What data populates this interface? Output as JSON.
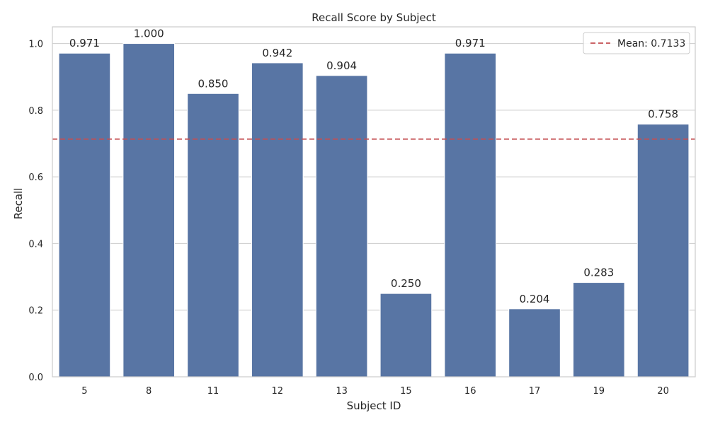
{
  "chart_data": {
    "type": "bar",
    "title": "Recall Score by Subject",
    "xlabel": "Subject ID",
    "ylabel": "Recall",
    "categories": [
      "5",
      "8",
      "11",
      "12",
      "13",
      "15",
      "16",
      "17",
      "19",
      "20"
    ],
    "values": [
      0.971,
      1.0,
      0.85,
      0.942,
      0.904,
      0.25,
      0.971,
      0.204,
      0.283,
      0.758
    ],
    "value_labels": [
      "0.971",
      "1.000",
      "0.850",
      "0.942",
      "0.904",
      "0.250",
      "0.971",
      "0.204",
      "0.283",
      "0.758"
    ],
    "yticks": [
      0.0,
      0.2,
      0.4,
      0.6,
      0.8,
      1.0
    ],
    "ytick_labels": [
      "0.0",
      "0.2",
      "0.4",
      "0.6",
      "0.8",
      "1.0"
    ],
    "ylim": [
      0,
      1.05
    ],
    "mean_line": {
      "value": 0.7133,
      "label": "Mean: 0.7133"
    },
    "legend_position": "top-right",
    "grid": "horizontal",
    "colors": {
      "bar": "#5875a4",
      "bar_edge": "#ffffff",
      "mean_line": "#c44e52",
      "grid": "#cccccc",
      "axes_edge": "#cccccc",
      "text": "#262626"
    }
  }
}
